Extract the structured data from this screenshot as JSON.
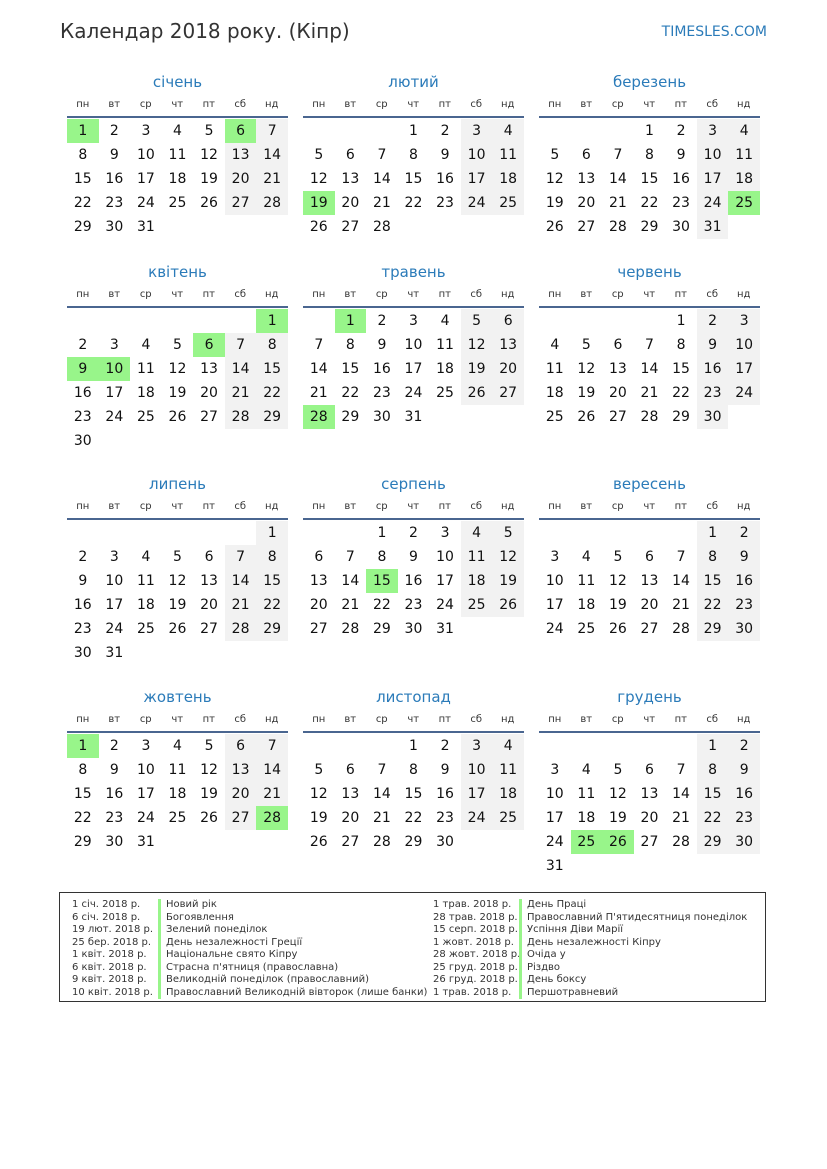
{
  "title": "Календар 2018 року. (Кіпр)",
  "brand": "TIMESLES.COM",
  "year": 2018,
  "colors": {
    "holiday": "#98f58a",
    "weekend": "#f2f2f2",
    "accent": "#2b7bb9"
  },
  "weekdays": [
    "пн",
    "вт",
    "ср",
    "чт",
    "пт",
    "сб",
    "нд"
  ],
  "months": [
    {
      "name": "січень",
      "holidays": [
        1,
        6
      ]
    },
    {
      "name": "лютий",
      "holidays": [
        19
      ]
    },
    {
      "name": "березень",
      "holidays": [
        25
      ]
    },
    {
      "name": "квітень",
      "holidays": [
        1,
        6,
        9,
        10
      ]
    },
    {
      "name": "травень",
      "holidays": [
        1,
        28
      ]
    },
    {
      "name": "червень",
      "holidays": []
    },
    {
      "name": "липень",
      "holidays": []
    },
    {
      "name": "серпень",
      "holidays": [
        15
      ]
    },
    {
      "name": "вересень",
      "holidays": []
    },
    {
      "name": "жовтень",
      "holidays": [
        1,
        28
      ]
    },
    {
      "name": "листопад",
      "holidays": []
    },
    {
      "name": "грудень",
      "holidays": [
        25,
        26
      ]
    }
  ],
  "legend": [
    [
      {
        "date": "1 січ. 2018 р.",
        "name": "Новий рік"
      },
      {
        "date": "6 січ. 2018 р.",
        "name": "Богоявлення"
      },
      {
        "date": "19 лют. 2018 р.",
        "name": "Зелений понеділок"
      },
      {
        "date": "25 бер. 2018 р.",
        "name": "День незалежності Греції"
      },
      {
        "date": "1 квіт. 2018 р.",
        "name": "Національне свято Кіпру"
      },
      {
        "date": "6 квіт. 2018 р.",
        "name": "Страсна п'ятниця (православна)"
      },
      {
        "date": "9 квіт. 2018 р.",
        "name": "Великодній понеділок (православний)"
      },
      {
        "date": "10 квіт. 2018 р.",
        "name": "Православний Великодній вівторок (лише банки)"
      }
    ],
    [
      {
        "date": "1 трав. 2018 р.",
        "name": "День Праці"
      },
      {
        "date": "28 трав. 2018 р.",
        "name": "Православний П'ятидесятниця понеділок"
      },
      {
        "date": "15 серп. 2018 р.",
        "name": "Успіння Діви Марії"
      },
      {
        "date": "1 жовт. 2018 р.",
        "name": "День незалежності Кіпру"
      },
      {
        "date": "28 жовт. 2018 р.",
        "name": "Очіда у"
      },
      {
        "date": "25 груд. 2018 р.",
        "name": "Різдво"
      },
      {
        "date": "26 груд. 2018 р.",
        "name": "День боксу"
      },
      {
        "date": "1 трав. 2018 р.",
        "name": "Першотравневий"
      }
    ]
  ]
}
